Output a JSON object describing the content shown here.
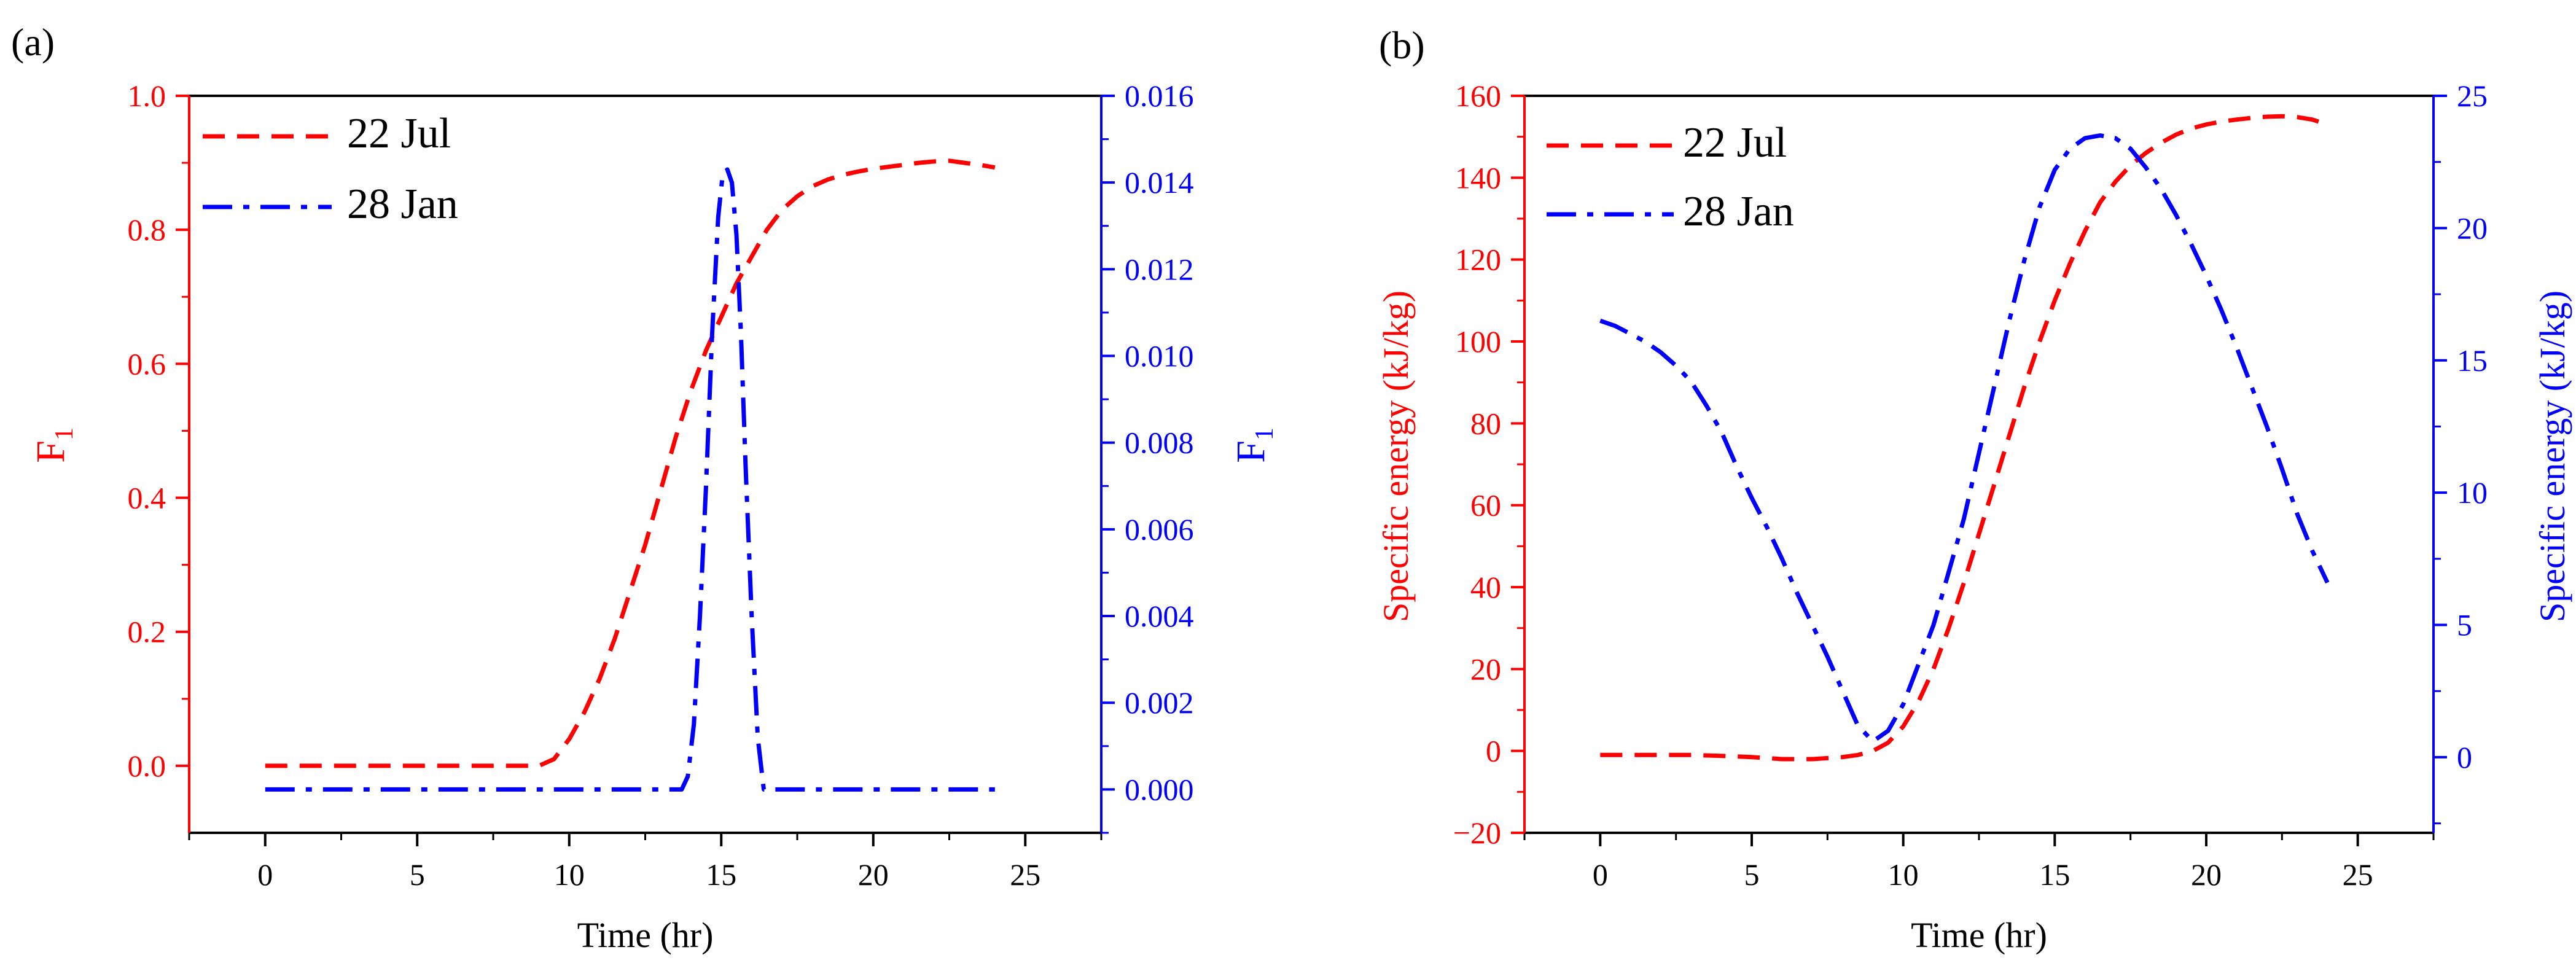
{
  "colors": {
    "red": "#ff0000",
    "blue": "#0000ff",
    "black": "#000000"
  },
  "panels": [
    {
      "label": "(a)"
    },
    {
      "label": "(b)"
    }
  ],
  "chart_data": [
    {
      "type": "line",
      "panel": "(a)",
      "xlabel": "Time (hr)",
      "xlim": [
        -2.5,
        27.5
      ],
      "xticks": [
        0,
        5,
        10,
        15,
        20,
        25
      ],
      "xtick_labels": [
        "0",
        "5",
        "10",
        "15",
        "20",
        "25"
      ],
      "ylabel_left": "F",
      "ylabel_left_sub": "1",
      "ylim_left": [
        -0.1,
        1.0
      ],
      "yticks_left": [
        0.0,
        0.2,
        0.4,
        0.6,
        0.8,
        1.0
      ],
      "ytick_labels_left": [
        "0.0",
        "0.2",
        "0.4",
        "0.6",
        "0.8",
        "1.0"
      ],
      "ylabel_right": "F",
      "ylabel_right_sub": "1",
      "ylim_right": [
        -0.001,
        0.016
      ],
      "yticks_right": [
        0.0,
        0.002,
        0.004,
        0.006,
        0.008,
        0.01,
        0.012,
        0.014,
        0.016
      ],
      "ytick_labels_right": [
        "0.000",
        "0.002",
        "0.004",
        "0.006",
        "0.008",
        "0.010",
        "0.012",
        "0.014",
        "0.016"
      ],
      "legend_position": "top-left",
      "series": [
        {
          "name": "22 Jul",
          "axis": "left",
          "color": "#ff0000",
          "style": "dash",
          "x": [
            0,
            1,
            2,
            3,
            4,
            5,
            6,
            7,
            8,
            9,
            9.5,
            10,
            10.5,
            11,
            11.5,
            12,
            12.5,
            13,
            13.5,
            14,
            14.5,
            15,
            15.5,
            16,
            16.5,
            17,
            17.5,
            18,
            18.5,
            19,
            19.5,
            20,
            20.5,
            21,
            21.5,
            22,
            22.5,
            23,
            23.5,
            24
          ],
          "y": [
            0,
            0,
            0,
            0,
            0,
            0,
            0,
            0,
            0,
            0,
            0.01,
            0.04,
            0.08,
            0.13,
            0.19,
            0.26,
            0.33,
            0.41,
            0.49,
            0.56,
            0.62,
            0.67,
            0.72,
            0.76,
            0.8,
            0.83,
            0.85,
            0.865,
            0.875,
            0.882,
            0.887,
            0.891,
            0.894,
            0.897,
            0.9,
            0.902,
            0.903,
            0.9,
            0.897,
            0.893
          ]
        },
        {
          "name": "28 Jan",
          "axis": "right",
          "color": "#0000ff",
          "style": "dashdot",
          "x": [
            0,
            2,
            4,
            6,
            8,
            10,
            12,
            13,
            13.7,
            13.9,
            14.1,
            14.3,
            14.5,
            14.7,
            14.9,
            15.05,
            15.2,
            15.35,
            15.5,
            15.65,
            15.8,
            16.0,
            16.2,
            16.4,
            17,
            18,
            20,
            22,
            24
          ],
          "y": [
            0,
            0,
            0,
            0,
            0,
            0,
            0,
            0,
            0,
            0.0003,
            0.0015,
            0.004,
            0.007,
            0.0105,
            0.0132,
            0.0142,
            0.0143,
            0.014,
            0.0128,
            0.0105,
            0.0075,
            0.004,
            0.0012,
            0,
            0,
            0,
            0,
            0,
            0
          ]
        }
      ]
    },
    {
      "type": "line",
      "panel": "(b)",
      "xlabel": "Time (hr)",
      "xlim": [
        -2.5,
        27.5
      ],
      "xticks": [
        0,
        5,
        10,
        15,
        20,
        25
      ],
      "xtick_labels": [
        "0",
        "5",
        "10",
        "15",
        "20",
        "25"
      ],
      "ylabel_left": "Specific energy (kJ/kg)",
      "ylim_left": [
        -20,
        160
      ],
      "yticks_left": [
        -20,
        0,
        20,
        40,
        60,
        80,
        100,
        120,
        140,
        160
      ],
      "ytick_labels_left": [
        "−20",
        "0",
        "20",
        "40",
        "60",
        "80",
        "100",
        "120",
        "140",
        "160"
      ],
      "ylabel_right": "Specific energy (kJ/kg)",
      "ylim_right": [
        -2.857,
        25
      ],
      "yticks_right": [
        0,
        5,
        10,
        15,
        20,
        25
      ],
      "ytick_labels_right": [
        "0",
        "5",
        "10",
        "15",
        "20",
        "25"
      ],
      "legend_position": "top-left",
      "series": [
        {
          "name": "22 Jul",
          "axis": "left",
          "color": "#ff0000",
          "style": "dash",
          "x": [
            0,
            1,
            2,
            3,
            4,
            5,
            6,
            7,
            8,
            8.5,
            9,
            9.5,
            10,
            10.5,
            11,
            11.5,
            12,
            12.5,
            13,
            13.5,
            14,
            14.5,
            15,
            15.5,
            16,
            16.5,
            17,
            17.5,
            18,
            18.5,
            19,
            19.5,
            20,
            20.5,
            21,
            21.5,
            22,
            22.5,
            23,
            23.5,
            24
          ],
          "y": [
            -1,
            -1,
            -1,
            -1,
            -1.2,
            -1.5,
            -2,
            -2,
            -1.5,
            -1,
            0,
            2,
            6,
            12,
            20,
            30,
            41,
            53,
            65,
            77,
            89,
            100,
            110,
            119,
            127,
            134,
            139,
            143,
            146,
            148.5,
            150.5,
            152,
            153,
            153.7,
            154.2,
            154.6,
            154.9,
            155,
            154.8,
            154.2,
            153
          ]
        },
        {
          "name": "28 Jan",
          "axis": "right",
          "color": "#0000ff",
          "style": "dashdot",
          "x": [
            0,
            0.5,
            1,
            1.5,
            2,
            2.5,
            3,
            3.5,
            4,
            4.5,
            5,
            5.5,
            6,
            6.5,
            7,
            7.5,
            8,
            8.5,
            9,
            9.5,
            10,
            10.5,
            11,
            11.5,
            12,
            12.5,
            13,
            13.5,
            14,
            14.5,
            15,
            15.5,
            16,
            16.5,
            17,
            17.5,
            18,
            18.5,
            19,
            19.5,
            20,
            20.5,
            21,
            21.5,
            22,
            22.5,
            23,
            23.5,
            24
          ],
          "y": [
            16.5,
            16.3,
            16.0,
            15.7,
            15.3,
            14.8,
            14.2,
            13.3,
            12.3,
            11.0,
            9.8,
            8.7,
            7.5,
            6.2,
            5.0,
            3.8,
            2.5,
            1.2,
            0.6,
            1.0,
            2.0,
            3.5,
            5.0,
            7.0,
            9.0,
            11.5,
            14.0,
            16.5,
            18.8,
            20.8,
            22.2,
            23.0,
            23.4,
            23.5,
            23.4,
            23.0,
            22.3,
            21.5,
            20.5,
            19.4,
            18.2,
            16.9,
            15.5,
            14.0,
            12.5,
            10.9,
            9.2,
            7.8,
            6.6
          ]
        }
      ]
    }
  ]
}
